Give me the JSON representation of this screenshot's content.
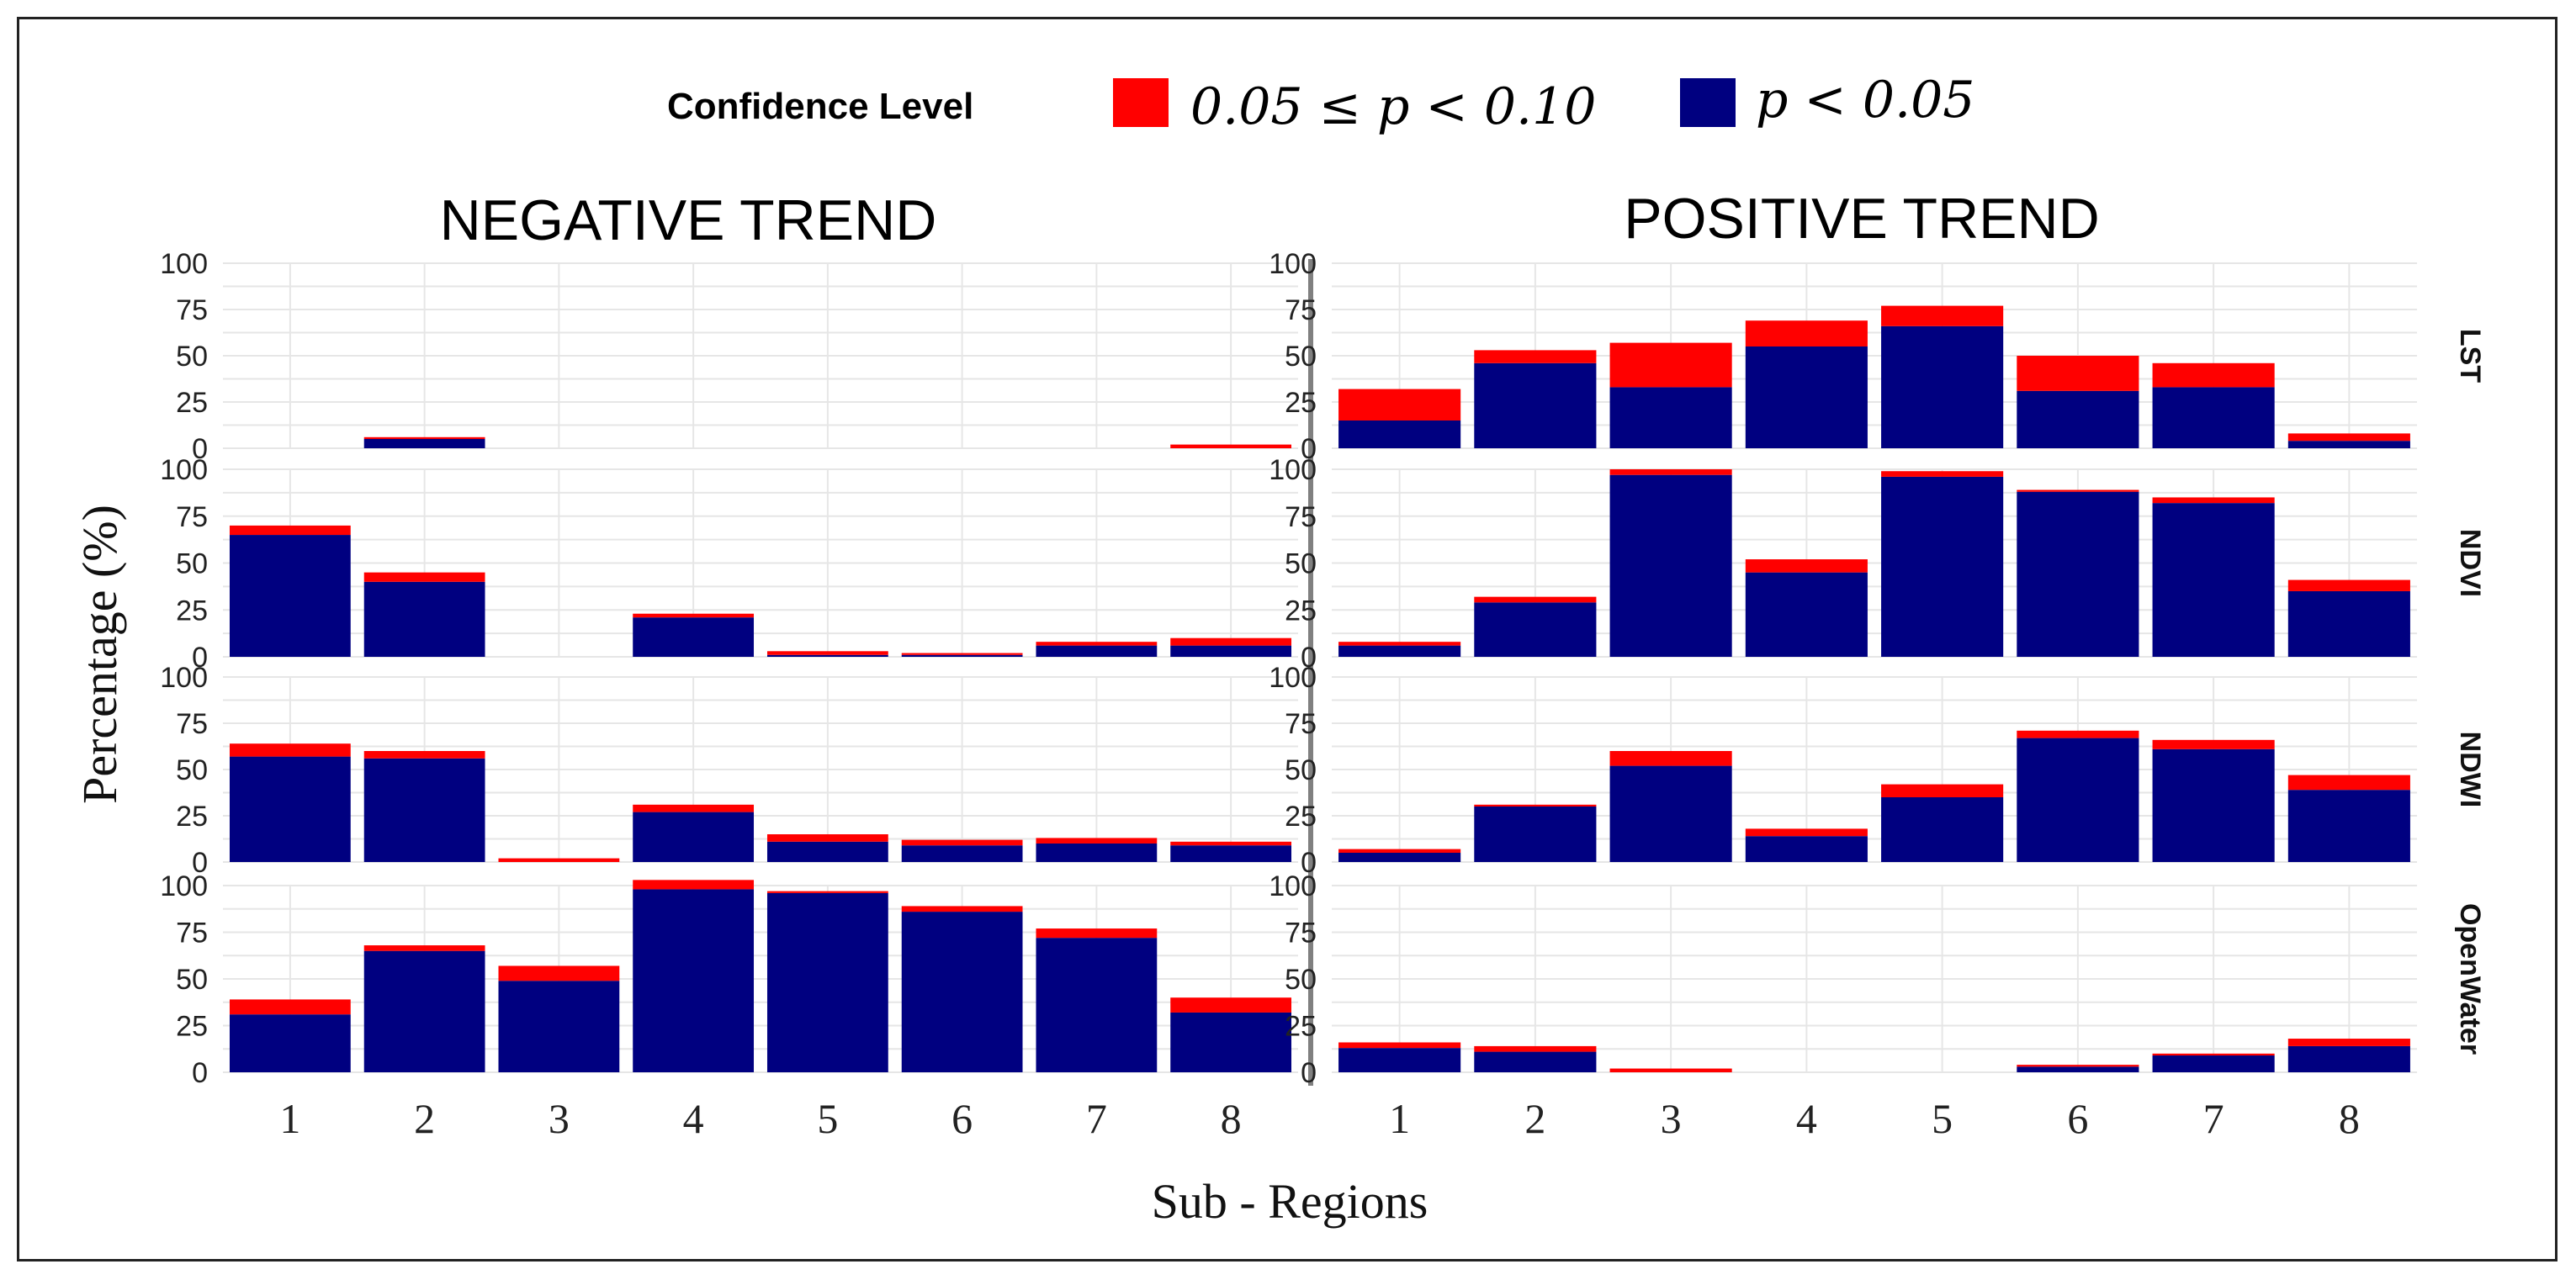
{
  "legend": {
    "title": "Confidence Level",
    "items": [
      {
        "label": "0.05 ≤ p < 0.10",
        "color": "#ff0000"
      },
      {
        "label": "p < 0.05",
        "color": "#000080"
      }
    ]
  },
  "chart_data": {
    "type": "bar",
    "stacked": true,
    "xlabel": "Sub - Regions",
    "ylabel": "Percentage (%)",
    "ylim": [
      0,
      100
    ],
    "yticks": [
      0,
      25,
      50,
      75,
      100
    ],
    "categories": [
      "1",
      "2",
      "3",
      "4",
      "5",
      "6",
      "7",
      "8"
    ],
    "columns": [
      "NEGATIVE TREND",
      "POSITIVE TREND"
    ],
    "rows": [
      "LST",
      "NDVI",
      "NDWI",
      "OpenWater"
    ],
    "series_names": [
      "p < 0.05",
      "0.05 ≤ p < 0.10"
    ],
    "series_colors": [
      "#000080",
      "#ff0000"
    ],
    "panels": [
      {
        "column": "NEGATIVE TREND",
        "row": "LST",
        "p_lt_005": [
          0,
          5,
          0,
          0,
          0,
          0,
          0,
          0
        ],
        "p_005_010": [
          0,
          1,
          0,
          0,
          0,
          0,
          0,
          2
        ]
      },
      {
        "column": "POSITIVE TREND",
        "row": "LST",
        "p_lt_005": [
          15,
          46,
          33,
          55,
          66,
          31,
          33,
          4
        ],
        "p_005_010": [
          17,
          7,
          24,
          14,
          11,
          19,
          13,
          4
        ]
      },
      {
        "column": "NEGATIVE TREND",
        "row": "NDVI",
        "p_lt_005": [
          65,
          40,
          0,
          21,
          1,
          1,
          6,
          6
        ],
        "p_005_010": [
          5,
          5,
          0,
          2,
          2,
          1,
          2,
          4
        ]
      },
      {
        "column": "POSITIVE TREND",
        "row": "NDVI",
        "p_lt_005": [
          6,
          29,
          97,
          45,
          96,
          88,
          82,
          35
        ],
        "p_005_010": [
          2,
          3,
          3,
          7,
          3,
          1,
          3,
          6
        ]
      },
      {
        "column": "NEGATIVE TREND",
        "row": "NDWI",
        "p_lt_005": [
          57,
          56,
          0,
          27,
          11,
          9,
          10,
          9
        ],
        "p_005_010": [
          7,
          4,
          2,
          4,
          4,
          3,
          3,
          2
        ]
      },
      {
        "column": "POSITIVE TREND",
        "row": "NDWI",
        "p_lt_005": [
          5,
          30,
          52,
          14,
          35,
          67,
          61,
          39
        ],
        "p_005_010": [
          2,
          1,
          8,
          4,
          7,
          4,
          5,
          8
        ]
      },
      {
        "column": "NEGATIVE TREND",
        "row": "OpenWater",
        "p_lt_005": [
          31,
          65,
          49,
          98,
          96,
          86,
          72,
          32
        ],
        "p_005_010": [
          8,
          3,
          8,
          5,
          1,
          3,
          5,
          8
        ]
      },
      {
        "column": "POSITIVE TREND",
        "row": "OpenWater",
        "p_lt_005": [
          13,
          11,
          0,
          0,
          0,
          3,
          9,
          14
        ],
        "p_005_010": [
          3,
          3,
          2,
          0,
          0,
          1,
          1,
          4
        ]
      }
    ]
  }
}
